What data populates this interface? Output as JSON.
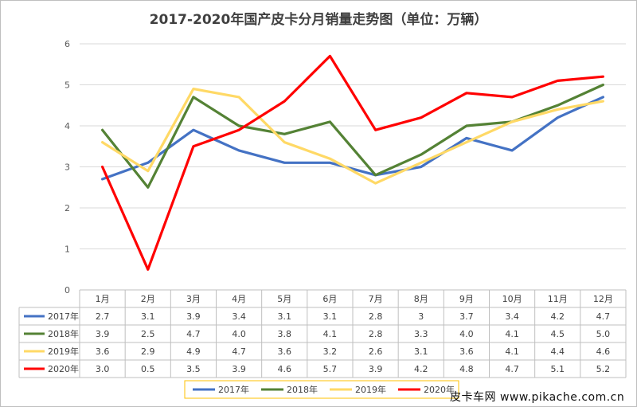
{
  "chart_data": {
    "type": "line",
    "title": "2017-2020年国产皮卡分月销量走势图（单位：万辆）",
    "categories": [
      "1月",
      "2月",
      "3月",
      "4月",
      "5月",
      "6月",
      "7月",
      "8月",
      "9月",
      "10月",
      "11月",
      "12月"
    ],
    "ylim": [
      0,
      6
    ],
    "yticks": [
      0,
      1,
      2,
      3,
      4,
      5,
      6
    ],
    "grid": true,
    "legend_position": "bottom",
    "series": [
      {
        "name": "2017年",
        "color": "#4472c4",
        "values": [
          2.7,
          3.1,
          3.9,
          3.4,
          3.1,
          3.1,
          2.8,
          3,
          3.7,
          3.4,
          4.2,
          4.7
        ],
        "labels": [
          "2.7",
          "3.1",
          "3.9",
          "3.4",
          "3.1",
          "3.1",
          "2.8",
          "3",
          "3.7",
          "3.4",
          "4.2",
          "4.7"
        ]
      },
      {
        "name": "2018年",
        "color": "#548235",
        "values": [
          3.9,
          2.5,
          4.7,
          4.0,
          3.8,
          4.1,
          2.8,
          3.3,
          4.0,
          4.1,
          4.5,
          5.0
        ],
        "labels": [
          "3.9",
          "2.5",
          "4.7",
          "4.0",
          "3.8",
          "4.1",
          "2.8",
          "3.3",
          "4.0",
          "4.1",
          "4.5",
          "5.0"
        ]
      },
      {
        "name": "2019年",
        "color": "#ffd966",
        "values": [
          3.6,
          2.9,
          4.9,
          4.7,
          3.6,
          3.2,
          2.6,
          3.1,
          3.6,
          4.1,
          4.4,
          4.6
        ],
        "labels": [
          "3.6",
          "2.9",
          "4.9",
          "4.7",
          "3.6",
          "3.2",
          "2.6",
          "3.1",
          "3.6",
          "4.1",
          "4.4",
          "4.6"
        ]
      },
      {
        "name": "2020年",
        "color": "#ff0000",
        "values": [
          3.0,
          0.5,
          3.5,
          3.9,
          4.6,
          5.7,
          3.9,
          4.2,
          4.8,
          4.7,
          5.1,
          5.2
        ],
        "labels": [
          "3.0",
          "0.5",
          "3.5",
          "3.9",
          "4.6",
          "5.7",
          "3.9",
          "4.2",
          "4.8",
          "4.7",
          "5.1",
          "5.2"
        ]
      }
    ]
  },
  "watermark": "皮卡车网  www.pikache.com.cn"
}
